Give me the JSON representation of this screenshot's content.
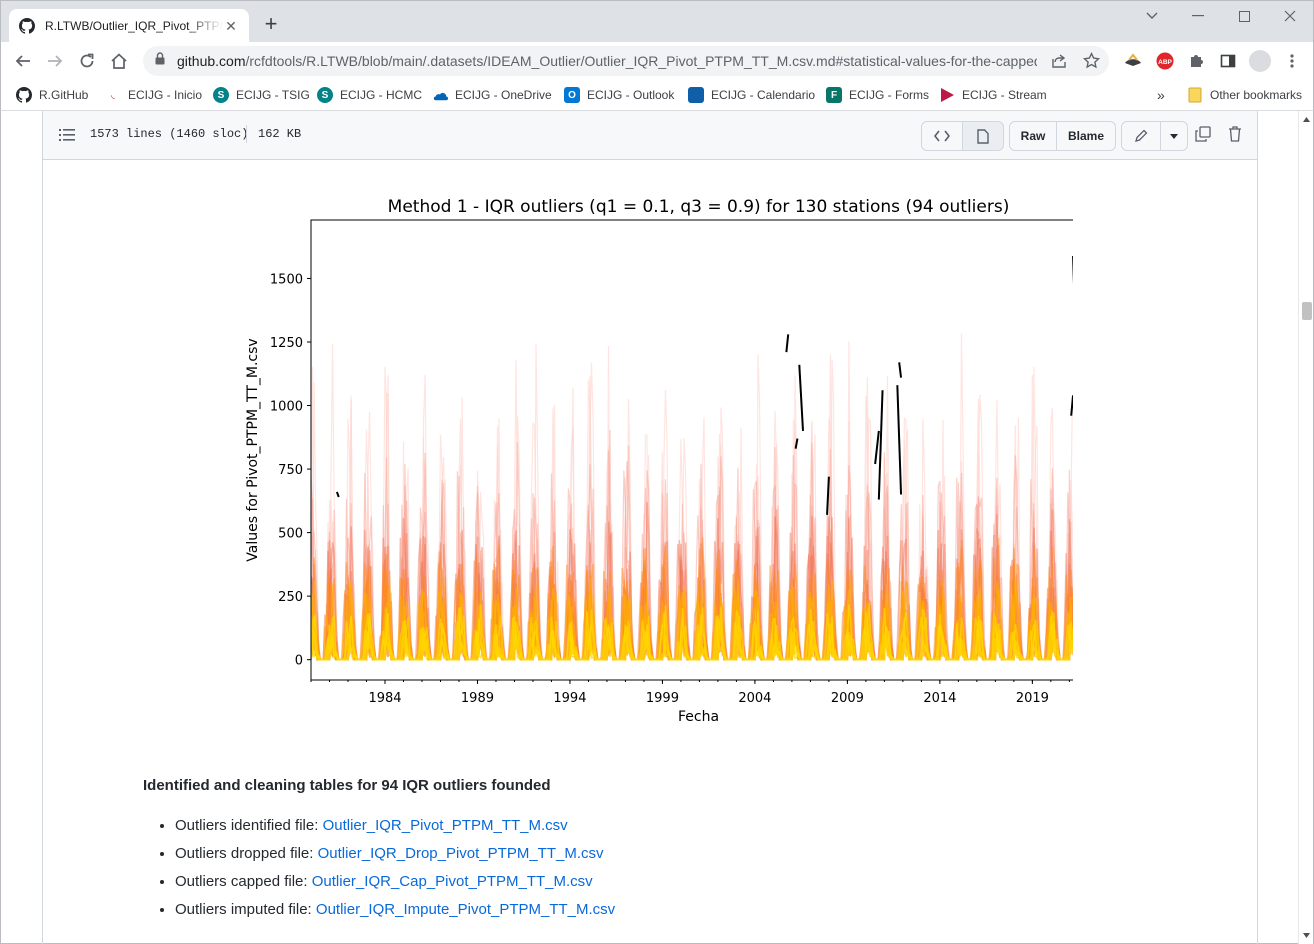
{
  "browser": {
    "tab_title": "R.LTWB/Outlier_IQR_Pivot_PTPM_TT_M.csv.md",
    "url_host": "github.com",
    "url_path": "/rcfdtools/R.LTWB/blob/main/.datasets/IDEAM_Outlier/Outlier_IQR_Pivot_PTPM_TT_M.csv.md#statistical-values-for-the-capped...",
    "bookmarks": [
      {
        "label": "R.GitHub",
        "color": "#24292f"
      },
      {
        "label": "ECIJG - Inicio",
        "color": "#c0392b"
      },
      {
        "label": "ECIJG - TSIG",
        "color": "#038387"
      },
      {
        "label": "ECIJG - HCMC",
        "color": "#038387"
      },
      {
        "label": "ECIJG - OneDrive",
        "color": "#0364b8"
      },
      {
        "label": "ECIJG - Outlook",
        "color": "#0078d4"
      },
      {
        "label": "ECIJG - Calendario",
        "color": "#0078d4"
      },
      {
        "label": "ECIJG - Forms",
        "color": "#077568"
      },
      {
        "label": "ECIJG - Stream",
        "color": "#bc1948"
      }
    ],
    "bookmarks_more": "»",
    "other_bookmarks": "Other bookmarks"
  },
  "file_header": {
    "lines": "1573 lines (1460 sloc)",
    "size": "162 KB",
    "raw_label": "Raw",
    "blame_label": "Blame"
  },
  "chart_data": {
    "type": "line",
    "title": "Method 1 - IQR outliers (q1 = 0.1, q3 = 0.9) for 130 stations (94 outliers)",
    "xlabel": "Fecha",
    "ylabel": "Values for Pivot_PTPM_TT_M.csv",
    "x_ticks": [
      "1984",
      "1989",
      "1994",
      "1999",
      "2004",
      "2009",
      "2014",
      "2019"
    ],
    "xlim": [
      1980.0,
      2021.9
    ],
    "y_ticks": [
      0,
      250,
      500,
      750,
      1000,
      1250,
      1500
    ],
    "ylim": [
      -80,
      1730
    ],
    "series_colors": [
      "#ffd0c8",
      "#f8a090",
      "#f07050",
      "#ff8c1a",
      "#ffb000",
      "#ffd700"
    ],
    "outlier_color": "#000000",
    "outlier_segments": [
      {
        "x": [
          1981.4,
          1981.5
        ],
        "y": [
          660,
          640
        ]
      },
      {
        "x": [
          2005.7,
          2005.8
        ],
        "y": [
          1210,
          1280
        ]
      },
      {
        "x": [
          2006.2,
          2006.3
        ],
        "y": [
          830,
          870
        ]
      },
      {
        "x": [
          2006.4,
          2006.6
        ],
        "y": [
          1160,
          900
        ]
      },
      {
        "x": [
          2007.9,
          2008.0
        ],
        "y": [
          570,
          720
        ]
      },
      {
        "x": [
          2010.5,
          2010.7
        ],
        "y": [
          770,
          900
        ]
      },
      {
        "x": [
          2010.7,
          2010.9
        ],
        "y": [
          630,
          1060
        ]
      },
      {
        "x": [
          2011.7,
          2011.9
        ],
        "y": [
          1080,
          650
        ]
      },
      {
        "x": [
          2011.8,
          2011.9
        ],
        "y": [
          1170,
          1110
        ]
      },
      {
        "x": [
          2021.1,
          2021.2
        ],
        "y": [
          960,
          1040
        ]
      },
      {
        "x": [
          2021.2,
          2021.5
        ],
        "y": [
          1590,
          920
        ]
      }
    ]
  },
  "links_section": {
    "title": "Identified and cleaning tables for 94 IQR outliers founded",
    "items": [
      {
        "prefix": "Outliers identified file:",
        "link": "Outlier_IQR_Pivot_PTPM_TT_M.csv"
      },
      {
        "prefix": "Outliers dropped file:",
        "link": "Outlier_IQR_Drop_Pivot_PTPM_TT_M.csv"
      },
      {
        "prefix": "Outliers capped file:",
        "link": "Outlier_IQR_Cap_Pivot_PTPM_TT_M.csv"
      },
      {
        "prefix": "Outliers imputed file:",
        "link": "Outlier_IQR_Impute_Pivot_PTPM_TT_M.csv"
      }
    ]
  }
}
